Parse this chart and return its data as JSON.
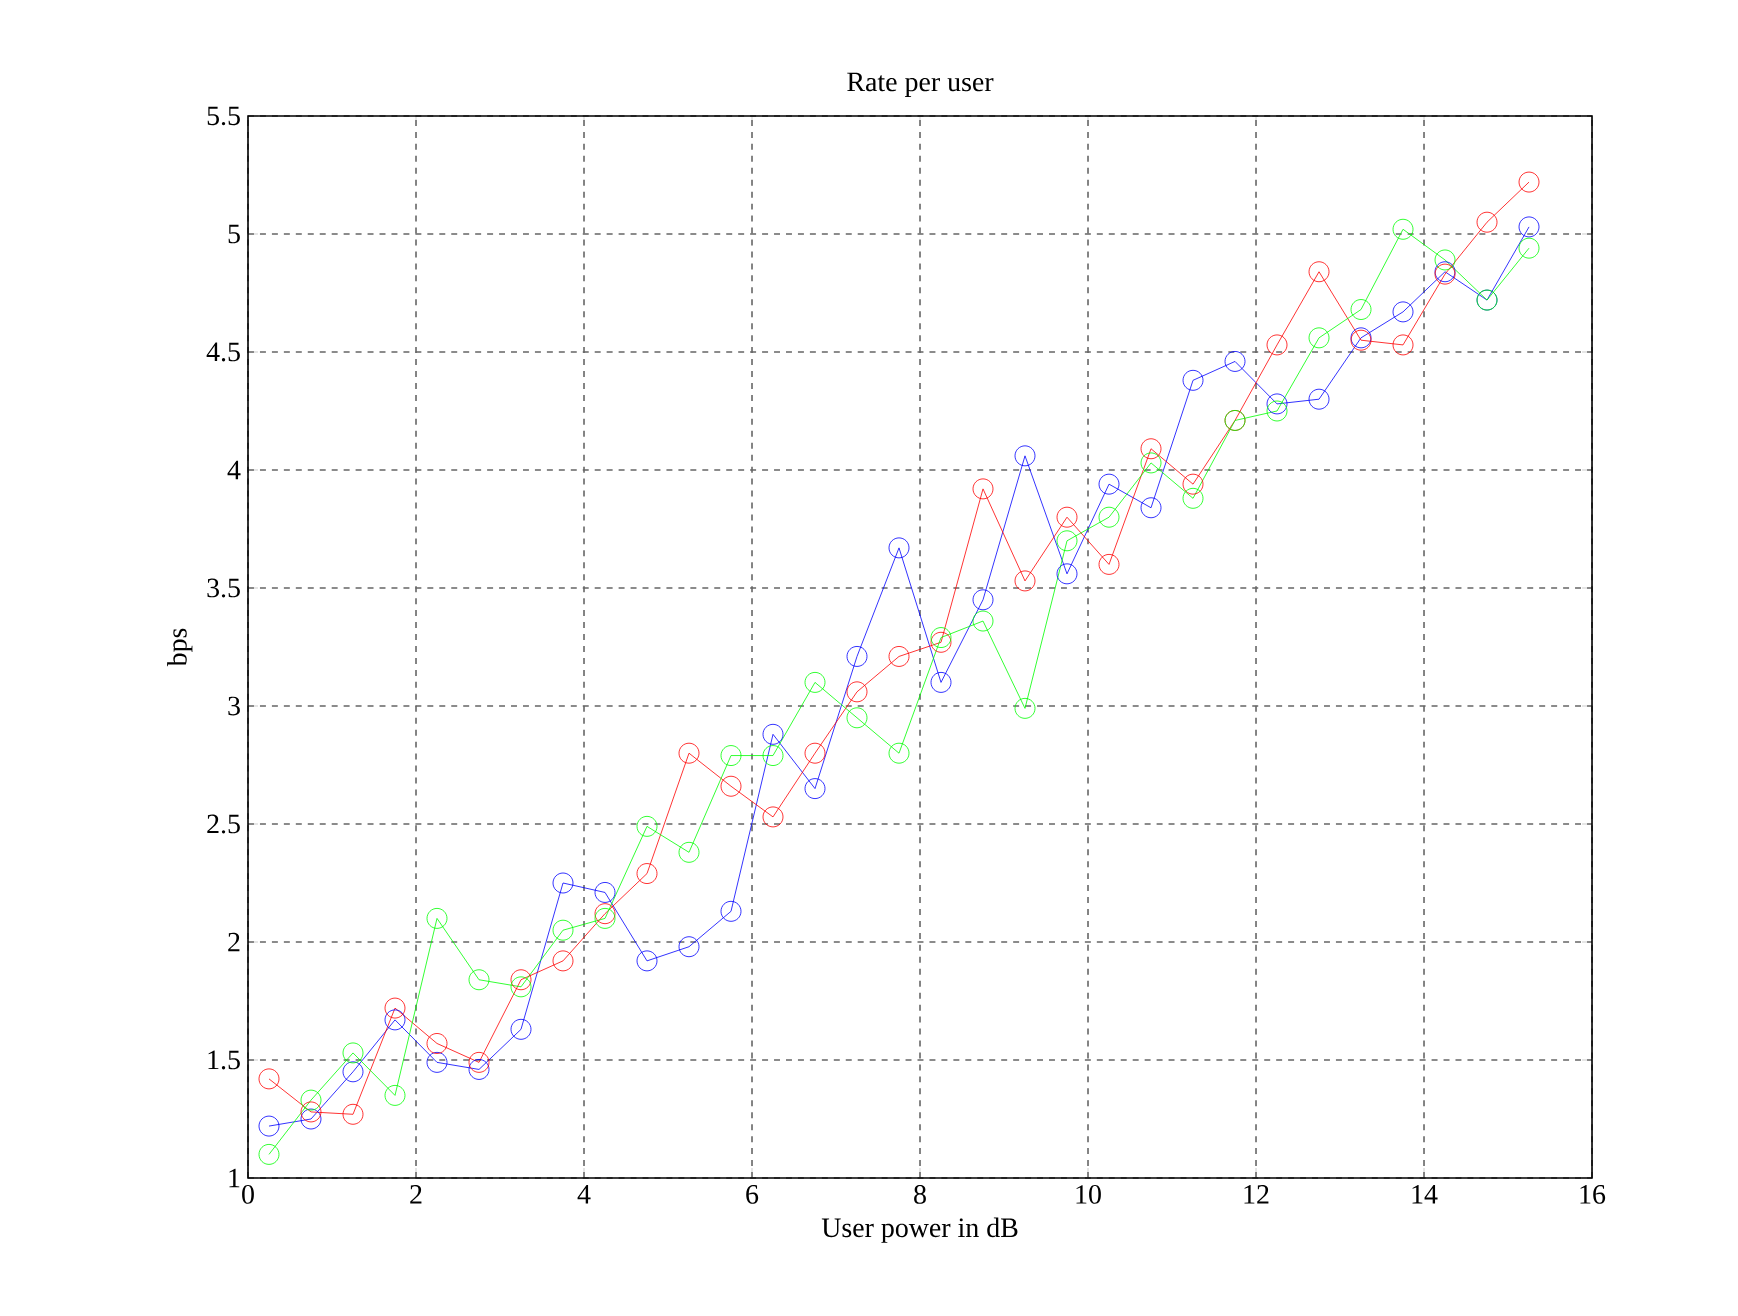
{
  "chart_data": {
    "type": "line",
    "title": "Rate per user",
    "xlabel": "User power in dB",
    "ylabel": "bps",
    "x": [
      0.25,
      0.75,
      1.25,
      1.75,
      2.25,
      2.75,
      3.25,
      3.75,
      4.25,
      4.75,
      5.25,
      5.75,
      6.25,
      6.75,
      7.25,
      7.75,
      8.25,
      8.75,
      9.25,
      9.75,
      10.25,
      10.75,
      11.25,
      11.75,
      12.25,
      12.75,
      13.25,
      13.75,
      14.25,
      14.75,
      15.25
    ],
    "series": [
      {
        "color": "#0000ff",
        "values": [
          1.22,
          1.25,
          1.45,
          1.67,
          1.49,
          1.46,
          1.63,
          2.25,
          2.21,
          1.92,
          1.98,
          2.13,
          2.88,
          2.65,
          3.21,
          3.67,
          3.1,
          3.45,
          4.06,
          3.56,
          3.94,
          3.84,
          4.38,
          4.46,
          4.28,
          4.3,
          4.56,
          4.67,
          4.84,
          4.72,
          5.03
        ]
      },
      {
        "color": "#ff0000",
        "values": [
          1.42,
          1.28,
          1.27,
          1.72,
          1.57,
          1.49,
          1.84,
          1.92,
          2.12,
          2.29,
          2.8,
          2.66,
          2.53,
          2.8,
          3.06,
          3.21,
          3.27,
          3.92,
          3.53,
          3.8,
          3.6,
          4.09,
          3.94,
          4.21,
          4.53,
          4.84,
          4.55,
          4.53,
          4.83,
          5.05,
          5.22
        ]
      },
      {
        "color": "#00ff00",
        "values": [
          1.1,
          1.33,
          1.53,
          1.35,
          2.1,
          1.84,
          1.81,
          2.05,
          2.1,
          2.49,
          2.38,
          2.79,
          2.79,
          3.1,
          2.95,
          2.8,
          3.29,
          3.36,
          2.99,
          3.7,
          3.8,
          4.03,
          3.88,
          4.21,
          4.25,
          4.56,
          4.68,
          5.02,
          4.89,
          4.72,
          4.94
        ]
      }
    ],
    "xlim": [
      0,
      16
    ],
    "xticks": [
      0,
      2,
      4,
      6,
      8,
      10,
      12,
      14,
      16
    ],
    "ylim": [
      1,
      5.5
    ],
    "yticks": [
      1,
      1.5,
      2,
      2.5,
      3,
      3.5,
      4,
      4.5,
      5,
      5.5
    ],
    "grid": true,
    "marker": "circle",
    "line_style": "solid"
  }
}
